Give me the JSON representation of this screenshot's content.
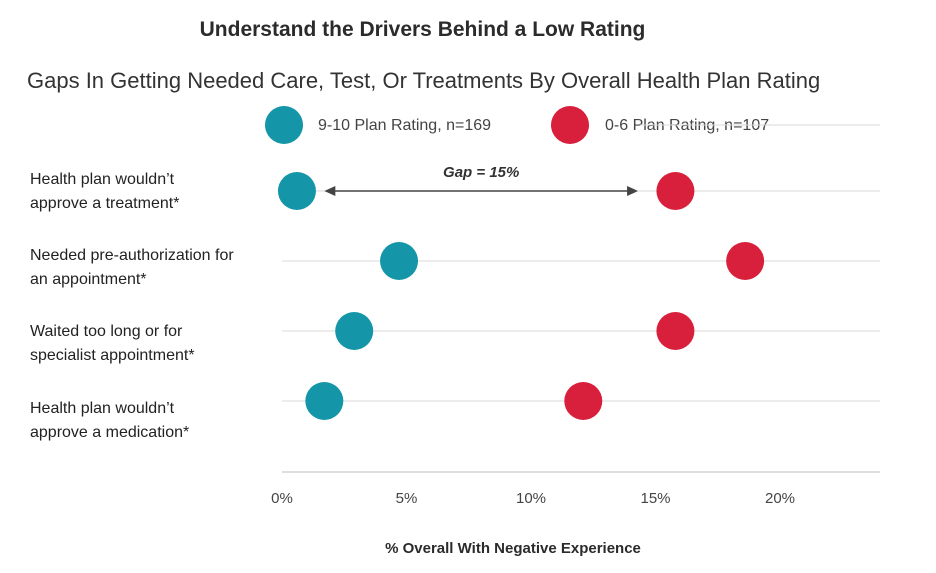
{
  "title": "Understand the Drivers Behind a Low Rating",
  "subtitle": "Gaps In Getting Needed Care, Test, Or Treatments By Overall Health Plan Rating",
  "colors": {
    "teal": "#1596a8",
    "red": "#d81f3c",
    "grid": "#d9d9d9",
    "arrow": "#444444"
  },
  "chart_data": {
    "type": "scatter",
    "title": "Gaps In Getting Needed Care, Test, Or Treatments By Overall Health Plan Rating",
    "xlabel": "% Overall With Negative Experience",
    "xlim": [
      0,
      24
    ],
    "xticks": [
      "0%",
      "5%",
      "10%",
      "15%",
      "20%"
    ],
    "xtick_values": [
      0,
      5,
      10,
      15,
      20
    ],
    "categories": [
      "Health plan wouldn’t approve a treatment*",
      "Needed pre-authorization for an appointment*",
      "Waited too long or for specialist appointment*",
      "Health plan wouldn’t approve a medication*"
    ],
    "category_lines": [
      [
        "Health plan wouldn’t",
        "approve a treatment*"
      ],
      [
        "Needed pre-authorization for",
        "an appointment*"
      ],
      [
        "Waited too long or for",
        "specialist appointment*"
      ],
      [
        "Health plan wouldn’t",
        "approve a medication*"
      ]
    ],
    "series": [
      {
        "name": "9-10 Plan Rating, n=169",
        "color": "#1596a8",
        "values": [
          0.6,
          4.7,
          2.9,
          1.7
        ]
      },
      {
        "name": "0-6 Plan Rating, n=107",
        "color": "#d81f3c",
        "values": [
          15.8,
          18.6,
          15.8,
          12.1
        ]
      }
    ],
    "annotation": {
      "text": "Gap = 15%",
      "category_index": 0,
      "from": 1.7,
      "to": 14.3
    },
    "legend_position": "top"
  }
}
